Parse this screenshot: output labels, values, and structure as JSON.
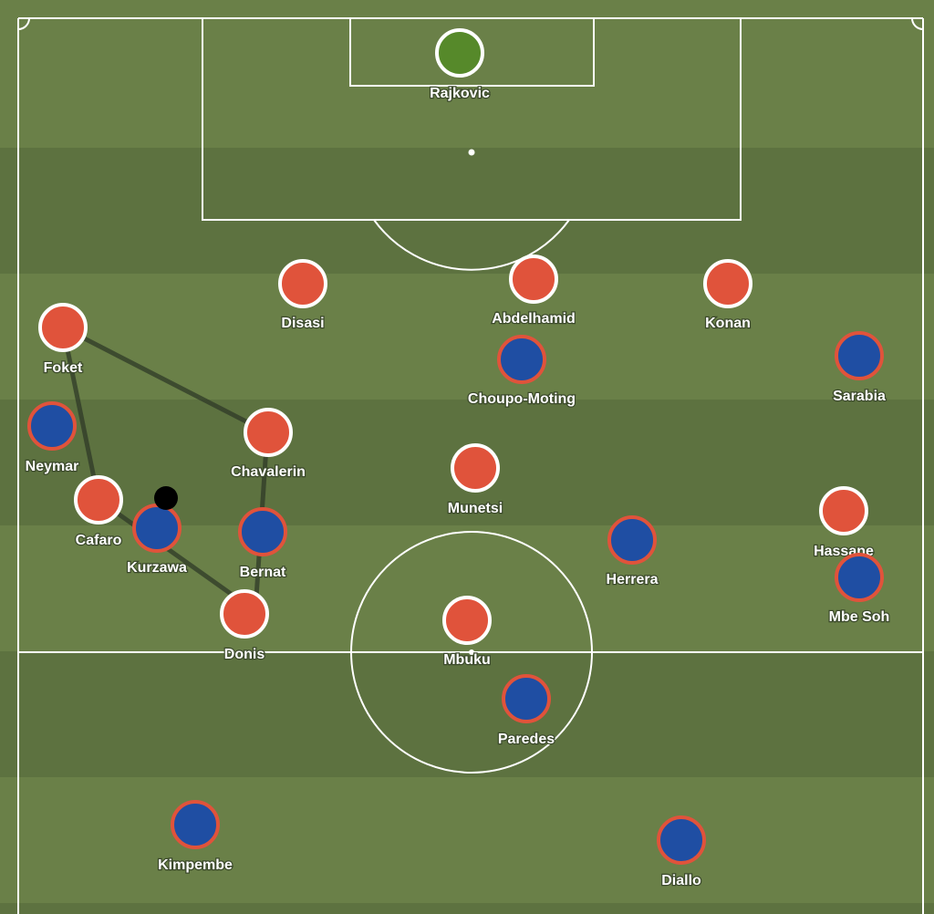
{
  "colors": {
    "pitch_light": "#6a8048",
    "pitch_dark": "#5d7240",
    "lines": "#ffffff",
    "team_red": "#e0533b",
    "team_blue": "#1f4ea3",
    "goalkeeper": "#56892a",
    "ball": "#000000",
    "shape_line": "#2f3a27"
  },
  "players": {
    "rajkovic": "Rajkovic",
    "disasi": "Disasi",
    "abdelhamid": "Abdelhamid",
    "konan": "Konan",
    "foket": "Foket",
    "choupo": "Choupo-Moting",
    "sarabia": "Sarabia",
    "neymar": "Neymar",
    "chavalerin": "Chavalerin",
    "munetsi": "Munetsi",
    "cafaro": "Cafaro",
    "kurzawa": "Kurzawa",
    "bernat": "Bernat",
    "herrera": "Herrera",
    "hassane": "Hassane",
    "mbesoh": "Mbe Soh",
    "donis": "Donis",
    "mbuku": "Mbuku",
    "paredes": "Paredes",
    "kimpembe": "Kimpembe",
    "diallo": "Diallo"
  }
}
